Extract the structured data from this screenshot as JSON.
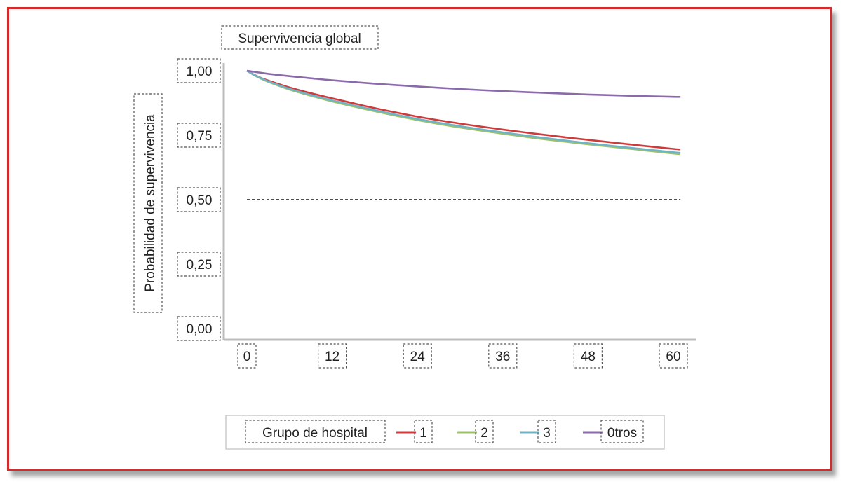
{
  "colors": {
    "frame": "#d42a2a",
    "axis": "#bdbdbd",
    "reference_line": "#111111"
  },
  "chart_data": {
    "type": "line",
    "title": "Supervivencia global",
    "xlabel": "",
    "ylabel": "Probabilidad de supervivencia",
    "xlim": [
      0,
      60
    ],
    "ylim": [
      0,
      1
    ],
    "x_ticks": [
      "0",
      "12",
      "24",
      "36",
      "48",
      "60"
    ],
    "y_ticks": [
      "0,00",
      "0,25",
      "0,50",
      "0,75",
      "1,00"
    ],
    "grid": false,
    "reference_line": {
      "y": 0.5,
      "style": "dashed"
    },
    "legend": {
      "title": "Grupo de hospital",
      "placement": "bottom"
    },
    "x": [
      0,
      1,
      2,
      3,
      6,
      9,
      12,
      18,
      24,
      30,
      36,
      42,
      48,
      54,
      60,
      61
    ],
    "series": [
      {
        "name": "1",
        "color": "#d03a3a",
        "values": [
          1.0,
          0.985,
          0.972,
          0.962,
          0.935,
          0.913,
          0.893,
          0.855,
          0.822,
          0.795,
          0.772,
          0.751,
          0.732,
          0.714,
          0.697,
          0.695
        ]
      },
      {
        "name": "2",
        "color": "#9dc06a",
        "values": [
          1.0,
          0.983,
          0.969,
          0.957,
          0.927,
          0.903,
          0.881,
          0.843,
          0.809,
          0.78,
          0.756,
          0.734,
          0.715,
          0.697,
          0.679,
          0.677
        ]
      },
      {
        "name": "3",
        "color": "#6fb3c6",
        "values": [
          1.0,
          0.984,
          0.971,
          0.959,
          0.93,
          0.906,
          0.885,
          0.847,
          0.813,
          0.785,
          0.761,
          0.739,
          0.719,
          0.701,
          0.684,
          0.682
        ]
      },
      {
        "name": "0tros",
        "color": "#8a6aaa",
        "values": [
          1.0,
          0.996,
          0.992,
          0.988,
          0.979,
          0.971,
          0.963,
          0.95,
          0.939,
          0.929,
          0.921,
          0.914,
          0.908,
          0.903,
          0.899,
          0.899
        ]
      }
    ]
  }
}
